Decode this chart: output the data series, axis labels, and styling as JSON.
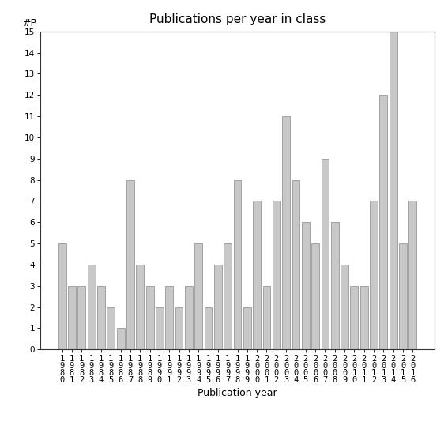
{
  "title": "Publications per year in class",
  "xlabel": "Publication year",
  "ylabel": "#P",
  "years": [
    "1980",
    "1981",
    "1982",
    "1983",
    "1984",
    "1985",
    "1986",
    "1987",
    "1988",
    "1989",
    "1990",
    "1991",
    "1992",
    "1993",
    "1994",
    "1995",
    "1996",
    "1997",
    "1998",
    "1999",
    "2000",
    "2001",
    "2002",
    "2003",
    "2004",
    "2005",
    "2006",
    "2007",
    "2008",
    "2009",
    "2010",
    "2011",
    "2012",
    "2013",
    "2014",
    "2015",
    "2016"
  ],
  "values": [
    5,
    3,
    3,
    4,
    3,
    2,
    1,
    8,
    4,
    3,
    2,
    3,
    2,
    3,
    5,
    2,
    4,
    5,
    8,
    2,
    7,
    3,
    7,
    11,
    8,
    6,
    5,
    9,
    6,
    4,
    3,
    3,
    7,
    12,
    15,
    5,
    7
  ],
  "bar_color": "#c8c8c8",
  "bar_edge_color": "#888888",
  "ylim": [
    0,
    15
  ],
  "yticks": [
    0,
    1,
    2,
    3,
    4,
    5,
    6,
    7,
    8,
    9,
    10,
    11,
    12,
    13,
    14,
    15
  ],
  "title_fontsize": 11,
  "axis_label_fontsize": 9,
  "tick_fontsize": 7.5,
  "ylabel_fontsize": 9
}
